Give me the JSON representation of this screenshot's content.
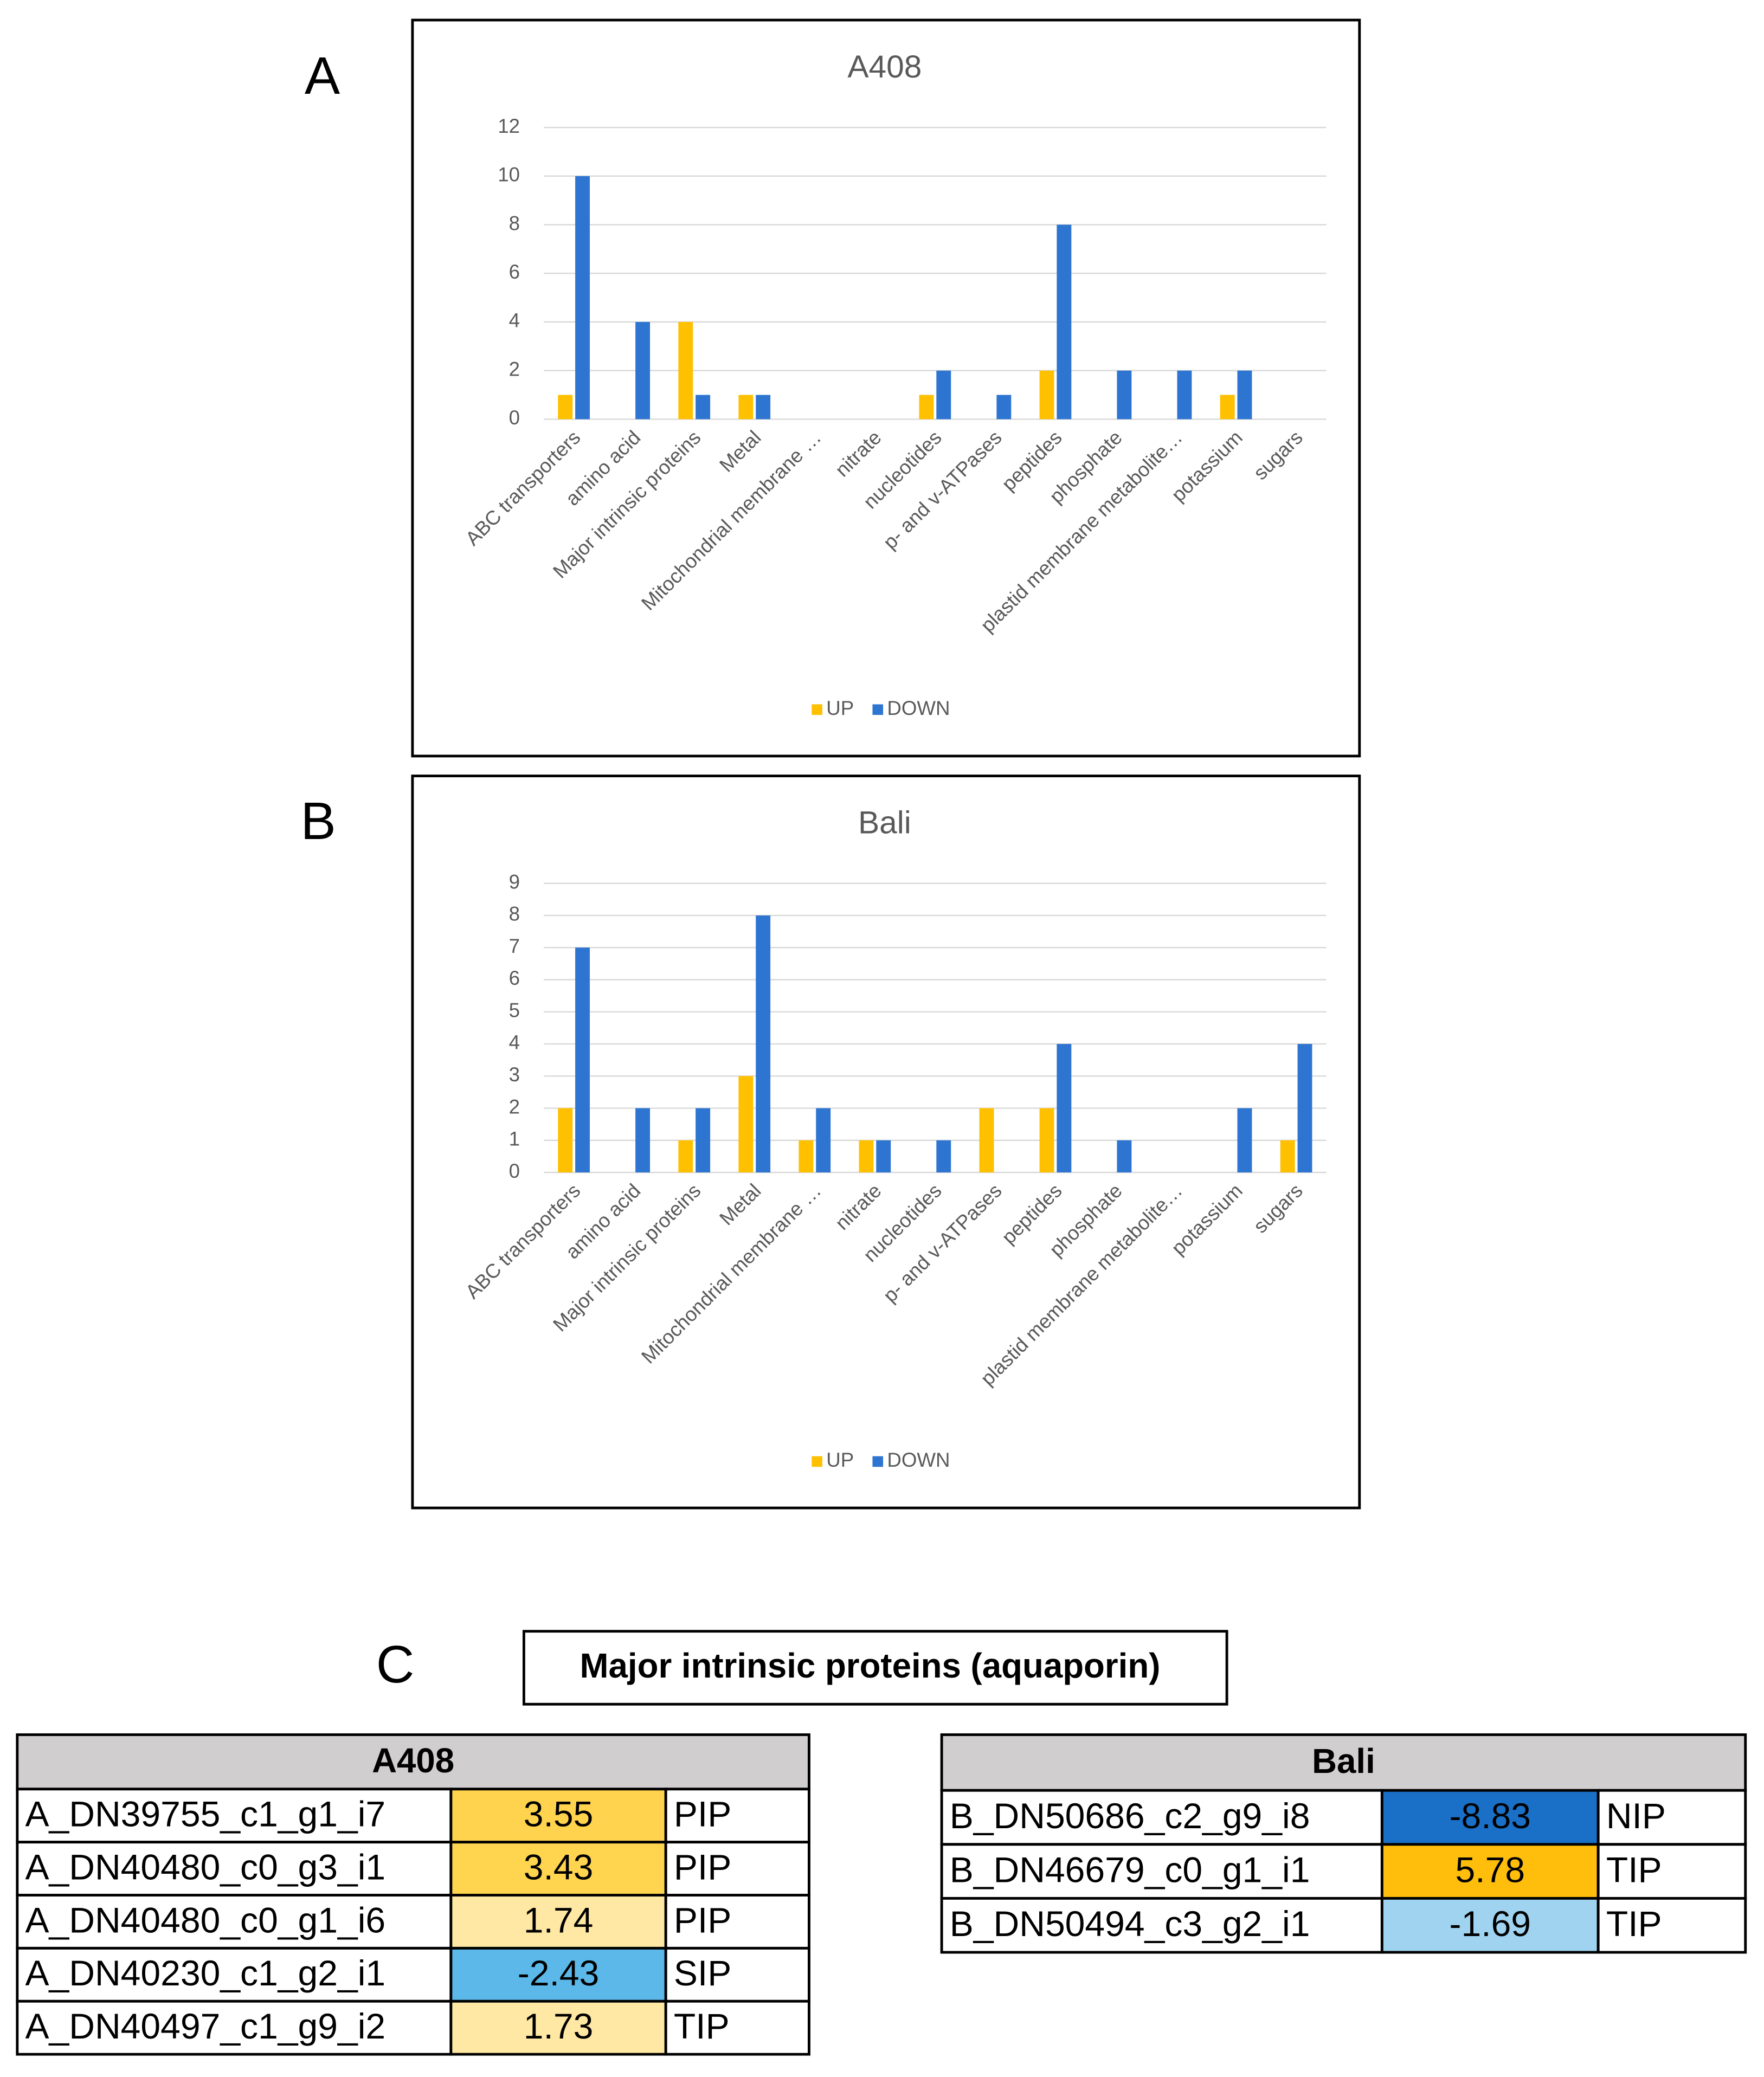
{
  "chart_data": [
    {
      "type": "bar",
      "panel": "A",
      "title": "A408",
      "categories": [
        "ABC transporters",
        "amino acid",
        "Major intrinsic proteins",
        "Metal",
        "Mitochondrial membrane …",
        "nitrate",
        "nucleotides",
        "p- and v-ATPases",
        "peptides",
        "phosphate",
        "plastid membrane metabolite…",
        "potassium",
        "sugars"
      ],
      "series": [
        {
          "name": "UP",
          "color": "#ffc000",
          "values": [
            1,
            0,
            4,
            1,
            0,
            0,
            1,
            0,
            2,
            0,
            0,
            1,
            0
          ]
        },
        {
          "name": "DOWN",
          "color": "#2e75d1",
          "values": [
            10,
            4,
            1,
            1,
            0,
            0,
            2,
            1,
            8,
            2,
            2,
            2,
            0
          ]
        }
      ],
      "ylim": [
        0,
        12
      ],
      "yticks": [
        0,
        2,
        4,
        6,
        8,
        10,
        12
      ],
      "grid": true,
      "legend": "bottom"
    },
    {
      "type": "bar",
      "panel": "B",
      "title": "Bali",
      "categories": [
        "ABC transporters",
        "amino acid",
        "Major intrinsic proteins",
        "Metal",
        "Mitochondrial membrane …",
        "nitrate",
        "nucleotides",
        "p- and v-ATPases",
        "peptides",
        "phosphate",
        "plastid membrane metabolite…",
        "potassium",
        "sugars"
      ],
      "series": [
        {
          "name": "UP",
          "color": "#ffc000",
          "values": [
            2,
            0,
            1,
            3,
            1,
            1,
            0,
            2,
            2,
            0,
            0,
            0,
            1
          ]
        },
        {
          "name": "DOWN",
          "color": "#2e75d1",
          "values": [
            7,
            2,
            2,
            8,
            2,
            1,
            1,
            0,
            4,
            1,
            0,
            2,
            4
          ]
        }
      ],
      "ylim": [
        0,
        9
      ],
      "yticks": [
        0,
        1,
        2,
        3,
        4,
        5,
        6,
        7,
        8,
        9
      ],
      "grid": true,
      "legend": "bottom"
    }
  ],
  "table_section": {
    "panel": "C",
    "title": "Major intrinsic proteins (aquaporin)",
    "tables": [
      {
        "header": "A408",
        "rows": [
          {
            "id": "A_DN39755_c1_g1_i7",
            "value": 3.55,
            "class": "PIP",
            "color": "#ffd34d"
          },
          {
            "id": "A_DN40480_c0_g3_i1",
            "value": 3.43,
            "class": "PIP",
            "color": "#ffd550"
          },
          {
            "id": "A_DN40480_c0_g1_i6",
            "value": 1.74,
            "class": "PIP",
            "color": "#ffe8a3"
          },
          {
            "id": "A_DN40230_c1_g2_i1",
            "value": -2.43,
            "class": "SIP",
            "color": "#5bb8e8"
          },
          {
            "id": "A_DN40497_c1_g9_i2",
            "value": 1.73,
            "class": "TIP",
            "color": "#ffe8a3"
          }
        ]
      },
      {
        "header": "Bali",
        "rows": [
          {
            "id": "B_DN50686_c2_g9_i8",
            "value": -8.83,
            "class": "NIP",
            "color": "#1a6fc6"
          },
          {
            "id": "B_DN46679_c0_g1_i1",
            "value": 5.78,
            "class": "TIP",
            "color": "#ffbe0c"
          },
          {
            "id": "B_DN50494_c3_g2_i1",
            "value": -1.69,
            "class": "TIP",
            "color": "#9fd3f0"
          }
        ]
      }
    ]
  }
}
